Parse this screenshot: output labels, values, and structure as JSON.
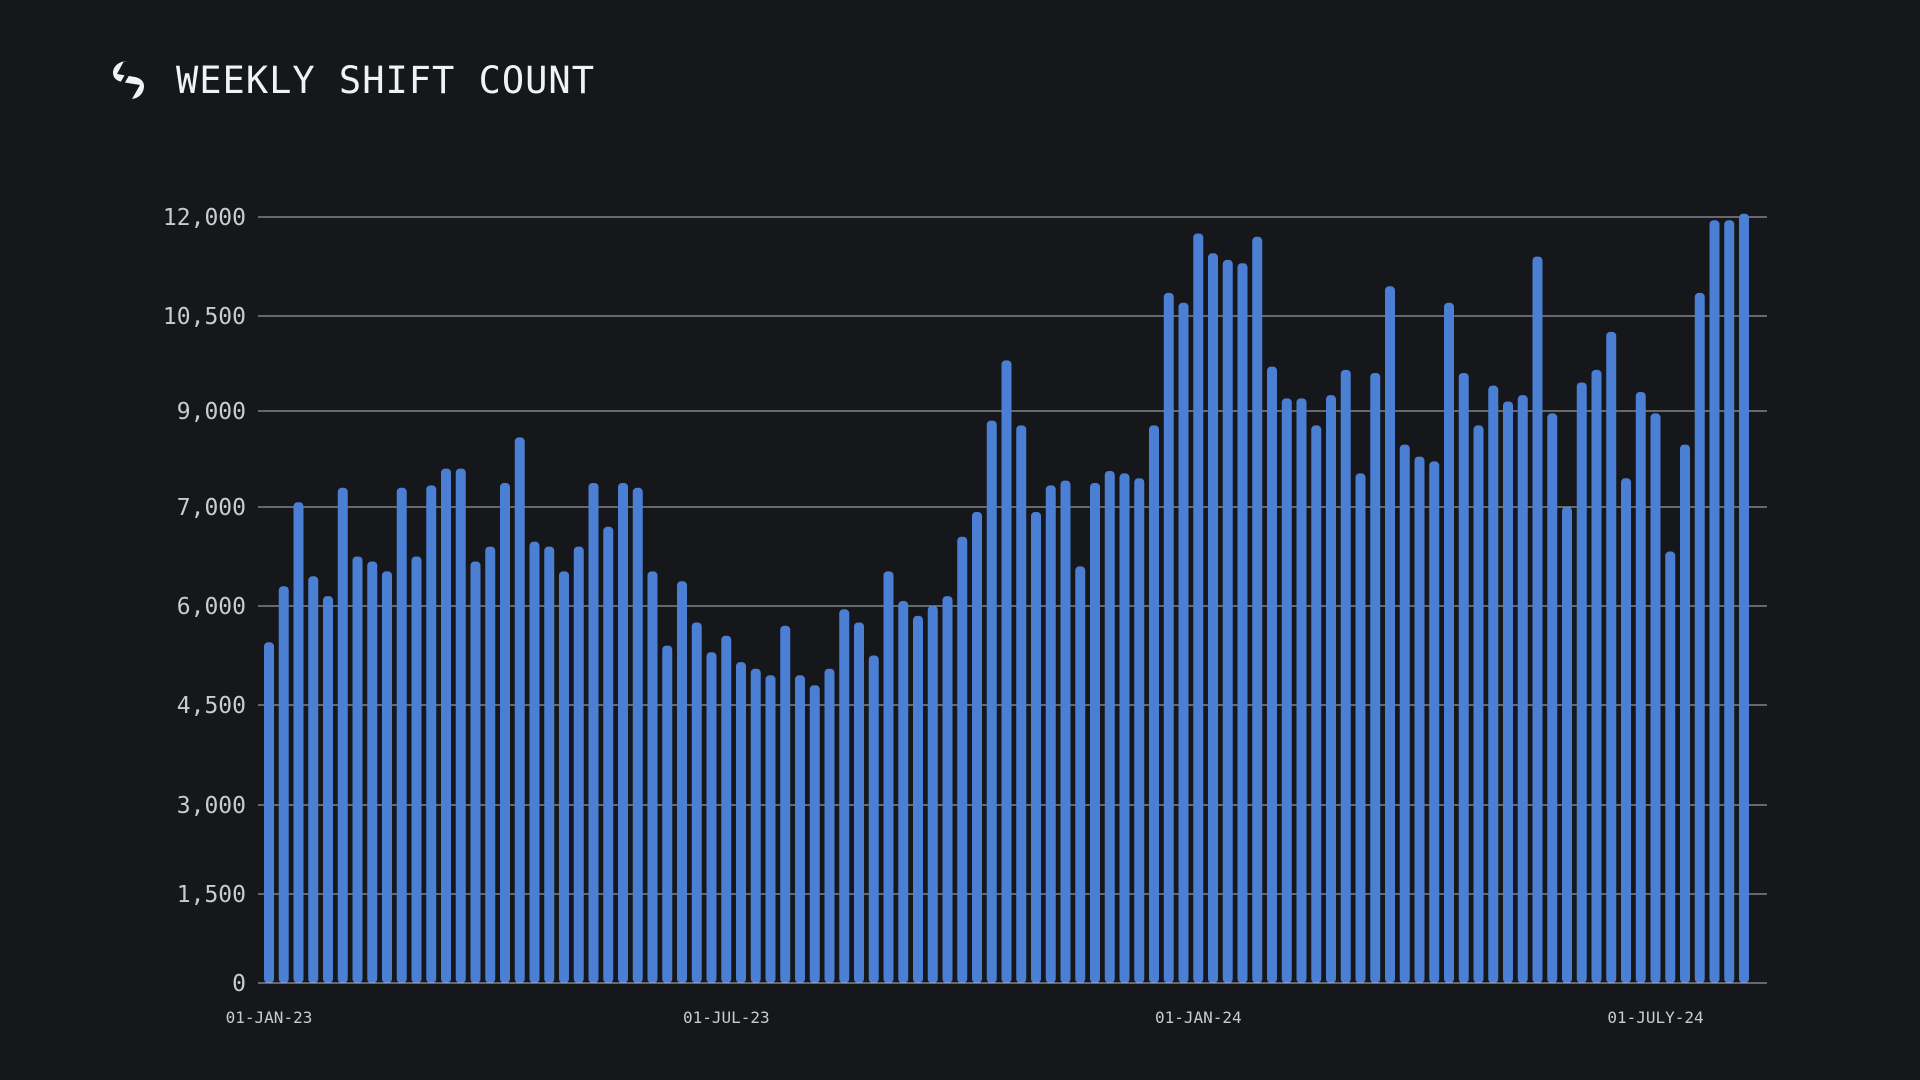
{
  "header": {
    "title": "WEEKLY SHIFT COUNT",
    "logo_icon": "s-logo-icon"
  },
  "colors": {
    "background": "#16171b",
    "bar": "#4a7fd4",
    "grid": "#b8bac0",
    "text": "#c9cbd0"
  },
  "chart_data": {
    "type": "bar",
    "title": "WEEKLY SHIFT COUNT",
    "xlabel": "",
    "ylabel": "",
    "ylim": [
      0,
      12000
    ],
    "yticks": [
      0,
      1500,
      3000,
      4500,
      6000,
      7000,
      9000,
      10500,
      12000
    ],
    "ytick_labels": [
      "0",
      "1,500",
      "3,000",
      "4,500",
      "6,000",
      "7,000",
      "9,000",
      "10,500",
      "12,000"
    ],
    "xtick_labels": [
      {
        "label": "01-JAN-23",
        "index": 0
      },
      {
        "label": "01-JUL-23",
        "index": 31
      },
      {
        "label": "01-JAN-24",
        "index": 63
      },
      {
        "label": "01-JULY-24",
        "index": 94
      }
    ],
    "grid": true,
    "values": [
      5450,
      6200,
      7100,
      6300,
      6100,
      7400,
      6500,
      6450,
      6350,
      7400,
      6500,
      7450,
      7800,
      7800,
      6450,
      6600,
      7500,
      8450,
      6650,
      6600,
      6350,
      6600,
      7500,
      6800,
      7500,
      7400,
      6350,
      5400,
      6250,
      5750,
      5300,
      5550,
      5150,
      5050,
      4950,
      5700,
      4950,
      4800,
      5050,
      5950,
      5750,
      5250,
      6350,
      6050,
      5850,
      6000,
      6100,
      6700,
      6950,
      8800,
      9800,
      8700,
      6950,
      7450,
      7550,
      6400,
      7500,
      7750,
      7700,
      7600,
      8700,
      10850,
      10700,
      11750,
      11450,
      11350,
      11300,
      11700,
      9700,
      9200,
      9200,
      8700,
      9250,
      9650,
      7700,
      9600,
      10950,
      8300,
      8050,
      7950,
      10700,
      9600,
      8700,
      9400,
      9150,
      9250,
      11400,
      8950,
      7000,
      9450,
      9650,
      10250,
      7600,
      9300,
      8950,
      6550,
      8300,
      10850,
      11950,
      11950,
      12050
    ]
  }
}
